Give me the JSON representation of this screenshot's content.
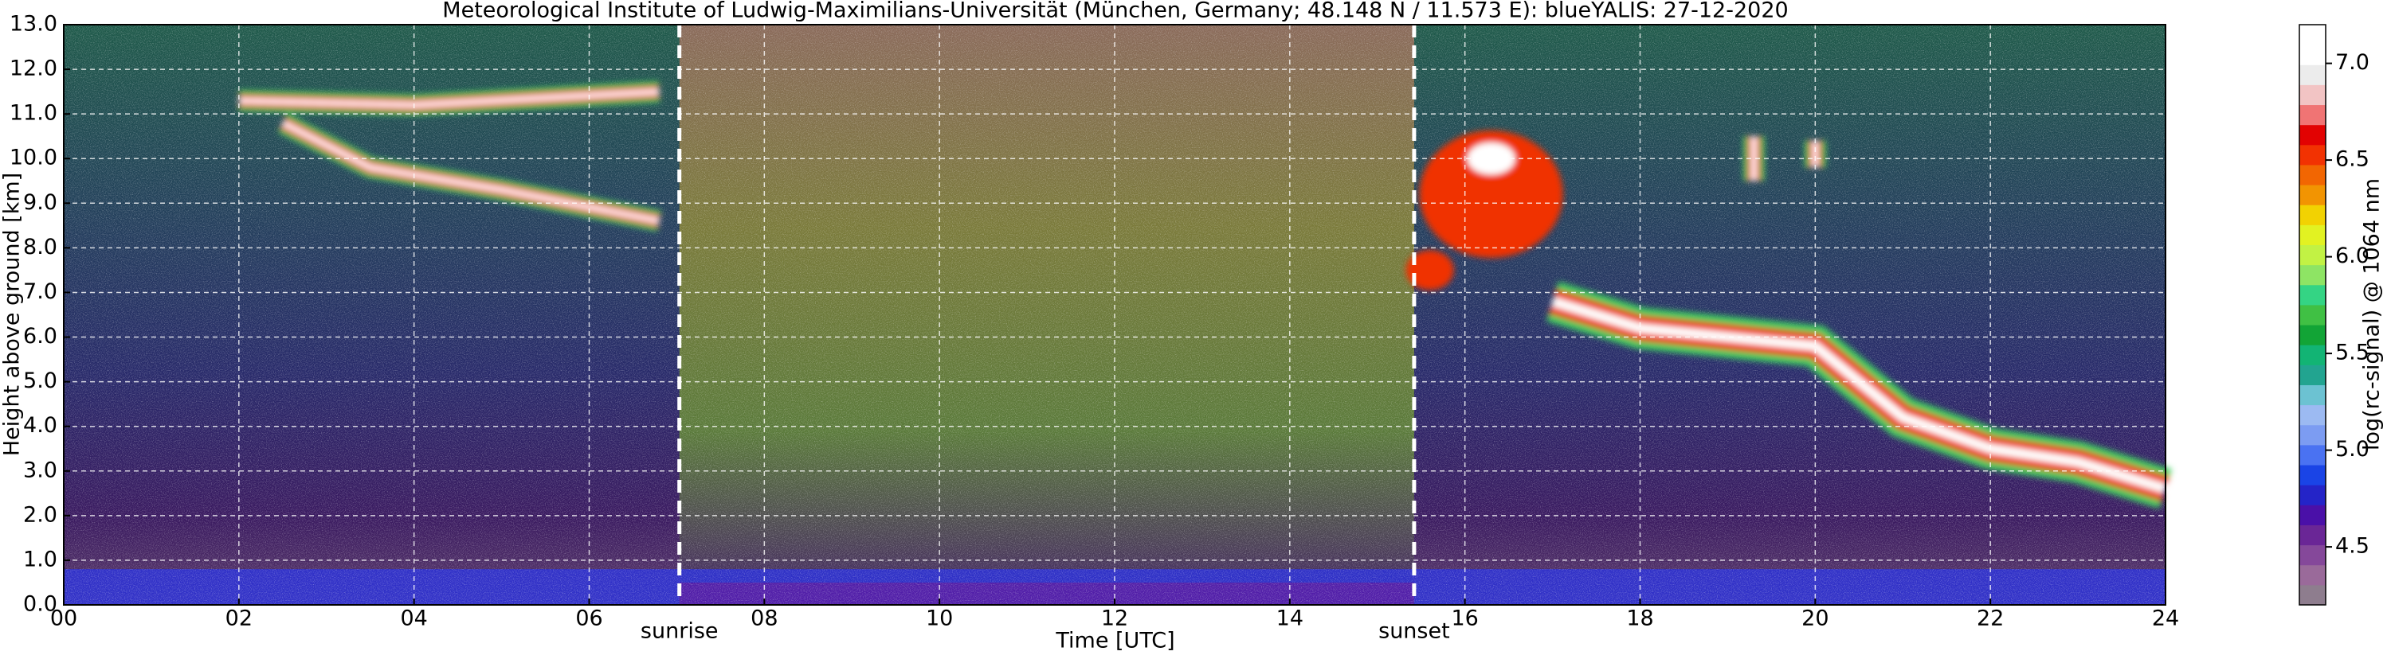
{
  "chart_data": {
    "type": "heatmap",
    "title": "Meteorological Institute of Ludwig-Maximilians-Universität (München, Germany; 48.148 N / 11.573 E):    blueYALIS: 27-12-2020",
    "x_label": "Time [UTC]",
    "y_label": "Height above ground [km]",
    "colorbar_label": "log(rc-signal) @ 1064 nm",
    "xlim": [
      0,
      24
    ],
    "xticks": [
      {
        "value": 0,
        "label": "00"
      },
      {
        "value": 2,
        "label": "02"
      },
      {
        "value": 4,
        "label": "04"
      },
      {
        "value": 6,
        "label": "06"
      },
      {
        "value": 8,
        "label": "08"
      },
      10,
      12,
      14,
      16,
      18,
      20,
      22,
      24
    ],
    "ylim": [
      0,
      13
    ],
    "yticks": [
      {
        "value": 0,
        "label": "0.0"
      },
      {
        "value": 1,
        "label": "1.0"
      },
      {
        "value": 2,
        "label": "2.0"
      },
      {
        "value": 3,
        "label": "3.0"
      },
      {
        "value": 4,
        "label": "4.0"
      },
      {
        "value": 5,
        "label": "5.0"
      },
      {
        "value": 6,
        "label": "6.0"
      },
      {
        "value": 7,
        "label": "7.0"
      },
      {
        "value": 8,
        "label": "8.0"
      },
      {
        "value": 9,
        "label": "9.0"
      },
      {
        "value": 10,
        "label": "10.0"
      },
      {
        "value": 11,
        "label": "11.0"
      },
      {
        "value": 12,
        "label": "12.0"
      },
      {
        "value": 13,
        "label": "13.0"
      }
    ],
    "clim": [
      4.2,
      7.2
    ],
    "cticks": [
      4.5,
      {
        "value": 5,
        "label": "5.0"
      },
      5.5,
      {
        "value": 6,
        "label": "6.0"
      },
      6.5,
      {
        "value": 7,
        "label": "7.0"
      }
    ],
    "colormap": [
      "#8e7d8e",
      "#9a6a9a",
      "#85489a",
      "#6a2696",
      "#4a10a8",
      "#2424c8",
      "#1a44e6",
      "#4a72f2",
      "#7c9cf2",
      "#9cbaf2",
      "#6cc2d2",
      "#22a490",
      "#12b474",
      "#12a436",
      "#40c044",
      "#34d484",
      "#8ee464",
      "#c2f244",
      "#e2f222",
      "#f2d202",
      "#f29402",
      "#f26602",
      "#f23202",
      "#e20202",
      "#f07474",
      "#f2c4c4",
      "#ececec",
      "#ffffff",
      "#ffffff"
    ],
    "grid": true,
    "annotations": [
      {
        "text": "sunrise",
        "x": 7.03
      },
      {
        "text": "sunset",
        "x": 15.42
      }
    ]
  }
}
